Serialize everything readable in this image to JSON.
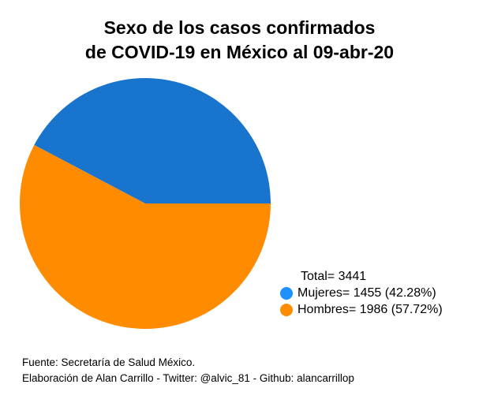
{
  "title_lines": [
    "Sexo de los casos confirmados",
    "de COVID-19 en México al 09-abr-20"
  ],
  "legend": {
    "total_text": "Total= 3441",
    "entries": [
      {
        "text": "Mujeres= 1455 (42.28%)",
        "color": "#1e90ff"
      },
      {
        "text": "Hombres= 1986 (57.72%)",
        "color": "#ff8c00"
      }
    ]
  },
  "footer": {
    "line1": "Fuente: Secretaría de Salud México.",
    "line2": "Elaboración de Alan Carrillo - Twitter: @alvic_81 - Github: alancarrillop"
  },
  "chart_data": {
    "type": "pie",
    "title": "Sexo de los casos confirmados de COVID-19 en México al 09-abr-20",
    "total": 3441,
    "slices": [
      {
        "label": "Mujeres",
        "value": 1455,
        "percent": 42.28,
        "color": "#1874cd",
        "legend_color": "#1e90ff"
      },
      {
        "label": "Hombres",
        "value": 1986,
        "percent": 57.72,
        "color": "#ff8c00",
        "legend_color": "#ff8c00"
      }
    ],
    "start_angle_deg": 0,
    "direction": "counterclockwise",
    "legend_position": "bottom-right"
  }
}
